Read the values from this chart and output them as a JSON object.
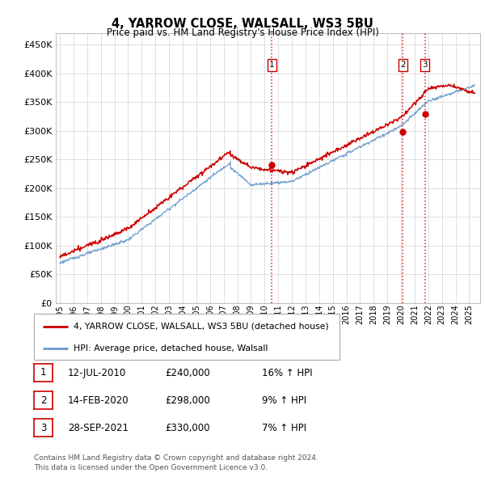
{
  "title": "4, YARROW CLOSE, WALSALL, WS3 5BU",
  "subtitle": "Price paid vs. HM Land Registry's House Price Index (HPI)",
  "ytick_values": [
    0,
    50000,
    100000,
    150000,
    200000,
    250000,
    300000,
    350000,
    400000,
    450000
  ],
  "ylim": [
    0,
    470000
  ],
  "xlim_start": 1994.7,
  "xlim_end": 2025.8,
  "sale_dates": [
    2010.53,
    2020.12,
    2021.75
  ],
  "sale_prices": [
    240000,
    298000,
    330000
  ],
  "sale_labels": [
    "1",
    "2",
    "3"
  ],
  "vline_color": "#cc0000",
  "hpi_line_color": "#6699cc",
  "price_line_color": "#cc0000",
  "legend_label_price": "4, YARROW CLOSE, WALSALL, WS3 5BU (detached house)",
  "legend_label_hpi": "HPI: Average price, detached house, Walsall",
  "table_rows": [
    [
      "1",
      "12-JUL-2010",
      "£240,000",
      "16% ↑ HPI"
    ],
    [
      "2",
      "14-FEB-2020",
      "£298,000",
      "9% ↑ HPI"
    ],
    [
      "3",
      "28-SEP-2021",
      "£330,000",
      "7% ↑ HPI"
    ]
  ],
  "footnote": "Contains HM Land Registry data © Crown copyright and database right 2024.\nThis data is licensed under the Open Government Licence v3.0.",
  "background_color": "#ffffff",
  "plot_bg_color": "#ffffff",
  "grid_color": "#dddddd"
}
